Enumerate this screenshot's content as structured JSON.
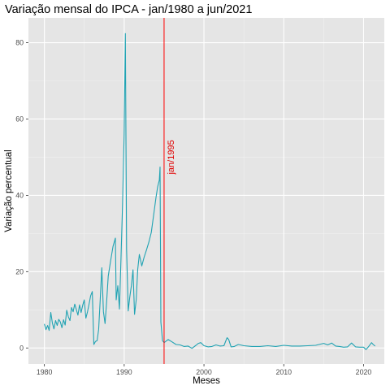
{
  "chart_data": {
    "type": "line",
    "title": "Variação mensal do IPCA - jan/1980 a jun/2021",
    "xlabel": "Meses",
    "ylabel": "Variação percentual",
    "xlim": [
      1978.0,
      2022.6
    ],
    "ylim": [
      -4.2,
      86.5
    ],
    "x_ticks": [
      1980,
      1990,
      2000,
      2010,
      2020
    ],
    "x_tick_labels": [
      "1980",
      "1990",
      "2000",
      "2010",
      "2020"
    ],
    "y_ticks": [
      0,
      20,
      40,
      60,
      80
    ],
    "y_tick_labels": [
      "0",
      "20",
      "40",
      "60",
      "80"
    ],
    "grid": true,
    "background": "#e5e5e5",
    "series": [
      {
        "color": "#21a3b3",
        "x": [
          1980.0,
          1980.2,
          1980.4,
          1980.6,
          1980.8,
          1981.0,
          1981.2,
          1981.4,
          1981.6,
          1981.8,
          1982.0,
          1982.2,
          1982.4,
          1982.6,
          1982.8,
          1983.0,
          1983.2,
          1983.4,
          1983.6,
          1983.8,
          1984.0,
          1984.2,
          1984.4,
          1984.6,
          1984.8,
          1985.0,
          1985.2,
          1985.4,
          1985.6,
          1985.8,
          1986.0,
          1986.2,
          1986.4,
          1986.6,
          1986.8,
          1987.0,
          1987.2,
          1987.4,
          1987.6,
          1987.8,
          1988.0,
          1988.3,
          1988.6,
          1988.9,
          1989.0,
          1989.2,
          1989.4,
          1989.6,
          1989.8,
          1990.0,
          1990.15,
          1990.3,
          1990.5,
          1990.7,
          1990.9,
          1991.1,
          1991.3,
          1991.5,
          1991.7,
          1991.9,
          1992.2,
          1992.5,
          1992.8,
          1993.1,
          1993.4,
          1993.7,
          1994.0,
          1994.2,
          1994.4,
          1994.5,
          1994.6,
          1994.8,
          1995.0,
          1995.5,
          1996.0,
          1996.5,
          1997.0,
          1997.5,
          1998.0,
          1998.5,
          1999.0,
          1999.3,
          1999.6,
          2000.0,
          2000.5,
          2001.0,
          2001.5,
          2002.0,
          2002.5,
          2002.9,
          2003.1,
          2003.4,
          2003.8,
          2004.3,
          2005.0,
          2006.0,
          2007.0,
          2008.0,
          2009.0,
          2010.0,
          2011.0,
          2012.0,
          2013.0,
          2014.0,
          2015.0,
          2015.5,
          2016.0,
          2016.5,
          2017.0,
          2017.5,
          2018.0,
          2018.5,
          2019.0,
          2019.5,
          2020.0,
          2020.3,
          2020.6,
          2021.0,
          2021.2,
          2021.45
        ],
        "y": [
          6.3,
          4.8,
          5.9,
          4.6,
          9.3,
          6.5,
          5.0,
          7.2,
          5.9,
          7.5,
          6.8,
          5.3,
          7.4,
          6.0,
          9.9,
          8.2,
          7.2,
          10.6,
          9.5,
          11.5,
          10.1,
          8.6,
          11.3,
          9.3,
          11.2,
          12.6,
          7.8,
          9.5,
          11.5,
          13.7,
          14.8,
          0.9,
          1.7,
          1.9,
          4.8,
          12.9,
          21.0,
          9.5,
          6.4,
          12.0,
          18.8,
          22.9,
          26.6,
          28.8,
          12.6,
          16.3,
          10.2,
          23.3,
          38.0,
          56.1,
          82.4,
          25.8,
          9.7,
          13.3,
          16.3,
          20.5,
          8.8,
          12.5,
          20.6,
          24.5,
          21.5,
          23.8,
          25.7,
          27.8,
          30.3,
          35.0,
          39.6,
          42.3,
          44.0,
          47.4,
          6.8,
          1.9,
          1.4,
          2.2,
          1.6,
          0.9,
          0.8,
          0.4,
          0.5,
          -0.1,
          0.7,
          1.2,
          1.4,
          0.6,
          0.3,
          0.4,
          0.8,
          0.5,
          0.6,
          2.7,
          2.2,
          0.3,
          0.4,
          0.9,
          0.6,
          0.4,
          0.4,
          0.6,
          0.4,
          0.7,
          0.5,
          0.5,
          0.6,
          0.7,
          1.2,
          0.8,
          1.3,
          0.5,
          0.4,
          0.2,
          0.3,
          1.3,
          0.3,
          0.2,
          0.2,
          -0.4,
          0.3,
          1.4,
          0.9,
          0.5
        ]
      }
    ],
    "vline": {
      "x": 1995.0,
      "color": "#ff0000",
      "label": "jan/1995"
    }
  }
}
